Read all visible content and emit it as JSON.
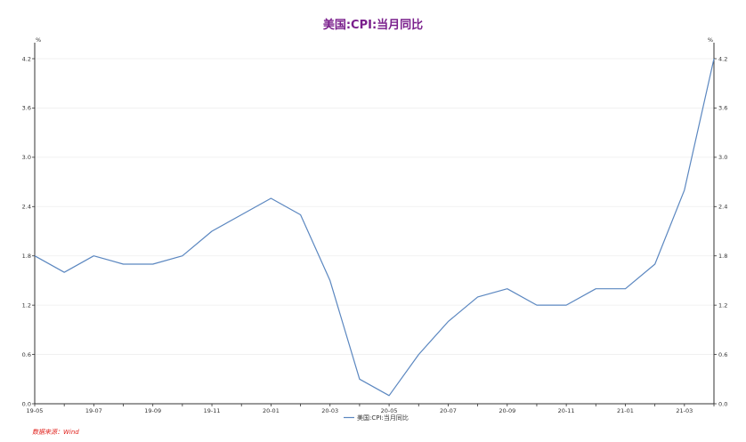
{
  "chart_data": {
    "type": "line",
    "title": "美国:CPI:当月同比",
    "x": [
      "19-05",
      "19-06",
      "19-07",
      "19-08",
      "19-09",
      "19-10",
      "19-11",
      "19-12",
      "20-01",
      "20-02",
      "20-03",
      "20-04",
      "20-05",
      "20-06",
      "20-07",
      "20-08",
      "20-09",
      "20-10",
      "20-11",
      "20-12",
      "21-01",
      "21-02",
      "21-03",
      "21-04"
    ],
    "x_tick_labels": [
      "19-05",
      "19-07",
      "19-09",
      "19-11",
      "20-01",
      "20-03",
      "20-05",
      "20-07",
      "20-09",
      "20-11",
      "21-01",
      "21-03"
    ],
    "series": [
      {
        "name": "美国:CPI:当月同比",
        "values": [
          1.8,
          1.6,
          1.8,
          1.7,
          1.7,
          1.8,
          2.1,
          2.3,
          2.5,
          2.3,
          1.5,
          0.3,
          0.1,
          0.6,
          1.0,
          1.3,
          1.4,
          1.2,
          1.2,
          1.4,
          1.4,
          1.7,
          2.6,
          4.2
        ]
      }
    ],
    "ylim": [
      0,
      4.2
    ],
    "y_ticks": [
      "0.0",
      "0.6",
      "1.2",
      "1.8",
      "2.4",
      "3.0",
      "3.6",
      "4.2"
    ],
    "y_axis_unit": "%",
    "y_axis_right": true,
    "grid": "horizontal",
    "legend": "bottom-center",
    "source": "数据来源：Wind",
    "colors": {
      "line": "#5b87c0",
      "title": "#7a1f8c",
      "source": "#e0201b",
      "axis": "#333333",
      "grid": "#eeeeee"
    }
  }
}
